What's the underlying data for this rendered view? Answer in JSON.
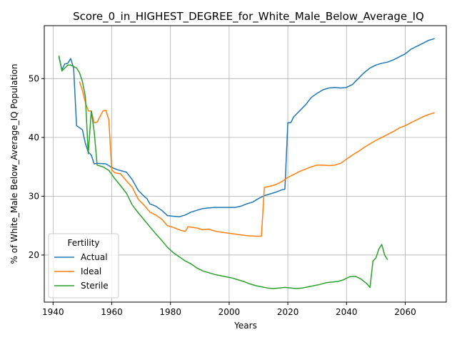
{
  "chart_data": {
    "type": "line",
    "title": "Score_0_in_HIGHEST_DEGREE_for_White_Male_Below_Average_IQ",
    "xlabel": "Years",
    "ylabel": "% of White_Male Below_Average_IQ Population",
    "xlim": [
      1937,
      2074
    ],
    "ylim": [
      12,
      59
    ],
    "xticks": [
      1940,
      1960,
      1980,
      2000,
      2020,
      2040,
      2060
    ],
    "yticks": [
      20,
      30,
      40,
      50
    ],
    "grid": true,
    "legend": {
      "title": "Fertility",
      "position": "lower-left"
    },
    "series": [
      {
        "name": "Actual",
        "color": "#1f77b4",
        "points": [
          [
            1942,
            53.7
          ],
          [
            1943,
            51.5
          ],
          [
            1944,
            52.5
          ],
          [
            1945,
            52.6
          ],
          [
            1946,
            53.4
          ],
          [
            1947,
            51.8
          ],
          [
            1948,
            42.0
          ],
          [
            1950,
            41.3
          ],
          [
            1951,
            39.0
          ],
          [
            1952,
            37.5
          ],
          [
            1953,
            37.0
          ],
          [
            1954,
            35.5
          ],
          [
            1955,
            35.6
          ],
          [
            1958,
            35.5
          ],
          [
            1960,
            34.9
          ],
          [
            1962,
            34.5
          ],
          [
            1965,
            34.1
          ],
          [
            1967,
            32.8
          ],
          [
            1969,
            31.0
          ],
          [
            1971,
            30.0
          ],
          [
            1972,
            29.6
          ],
          [
            1973,
            28.7
          ],
          [
            1975,
            28.3
          ],
          [
            1977,
            27.6
          ],
          [
            1979,
            26.7
          ],
          [
            1981,
            26.6
          ],
          [
            1983,
            26.5
          ],
          [
            1985,
            26.8
          ],
          [
            1987,
            27.3
          ],
          [
            1989,
            27.6
          ],
          [
            1991,
            27.9
          ],
          [
            1993,
            28.0
          ],
          [
            1995,
            28.1
          ],
          [
            1997,
            28.1
          ],
          [
            1999,
            28.1
          ],
          [
            2002,
            28.1
          ],
          [
            2004,
            28.3
          ],
          [
            2006,
            28.7
          ],
          [
            2008,
            29.0
          ],
          [
            2010,
            29.6
          ],
          [
            2012,
            30.1
          ],
          [
            2014,
            30.4
          ],
          [
            2016,
            30.7
          ],
          [
            2018,
            31.1
          ],
          [
            2019,
            31.2
          ],
          [
            2020,
            42.5
          ],
          [
            2021,
            42.5
          ],
          [
            2022,
            43.5
          ],
          [
            2024,
            44.5
          ],
          [
            2026,
            45.5
          ],
          [
            2028,
            46.8
          ],
          [
            2030,
            47.5
          ],
          [
            2032,
            48.1
          ],
          [
            2034,
            48.4
          ],
          [
            2036,
            48.5
          ],
          [
            2038,
            48.4
          ],
          [
            2040,
            48.5
          ],
          [
            2042,
            49.0
          ],
          [
            2044,
            50.0
          ],
          [
            2046,
            51.0
          ],
          [
            2048,
            51.8
          ],
          [
            2050,
            52.3
          ],
          [
            2052,
            52.6
          ],
          [
            2054,
            52.8
          ],
          [
            2056,
            53.2
          ],
          [
            2058,
            53.7
          ],
          [
            2060,
            54.2
          ],
          [
            2062,
            55.0
          ],
          [
            2064,
            55.5
          ],
          [
            2066,
            56.0
          ],
          [
            2068,
            56.5
          ],
          [
            2070,
            56.8
          ]
        ]
      },
      {
        "name": "Ideal",
        "color": "#ff7f0e",
        "points": [
          [
            1949,
            49.5
          ],
          [
            1950,
            48.0
          ],
          [
            1951,
            46.0
          ],
          [
            1952,
            44.5
          ],
          [
            1953,
            44.5
          ],
          [
            1954,
            42.5
          ],
          [
            1955,
            42.6
          ],
          [
            1957,
            44.5
          ],
          [
            1958,
            44.6
          ],
          [
            1959,
            43.0
          ],
          [
            1960,
            34.5
          ],
          [
            1961,
            34.0
          ],
          [
            1963,
            33.8
          ],
          [
            1965,
            32.6
          ],
          [
            1967,
            31.5
          ],
          [
            1969,
            29.5
          ],
          [
            1971,
            28.5
          ],
          [
            1973,
            27.3
          ],
          [
            1975,
            26.8
          ],
          [
            1977,
            26.1
          ],
          [
            1979,
            25.0
          ],
          [
            1981,
            24.7
          ],
          [
            1983,
            24.3
          ],
          [
            1985,
            24.0
          ],
          [
            1986,
            24.8
          ],
          [
            1989,
            24.6
          ],
          [
            1991,
            24.3
          ],
          [
            1993,
            24.4
          ],
          [
            1995,
            24.1
          ],
          [
            1997,
            23.9
          ],
          [
            2000,
            23.7
          ],
          [
            2003,
            23.5
          ],
          [
            2006,
            23.3
          ],
          [
            2009,
            23.2
          ],
          [
            2011,
            23.2
          ],
          [
            2012,
            31.5
          ],
          [
            2014,
            31.7
          ],
          [
            2016,
            32.0
          ],
          [
            2018,
            32.5
          ],
          [
            2020,
            33.2
          ],
          [
            2022,
            33.7
          ],
          [
            2024,
            34.2
          ],
          [
            2026,
            34.6
          ],
          [
            2028,
            35.0
          ],
          [
            2030,
            35.3
          ],
          [
            2032,
            35.3
          ],
          [
            2034,
            35.2
          ],
          [
            2036,
            35.3
          ],
          [
            2038,
            35.6
          ],
          [
            2040,
            36.3
          ],
          [
            2042,
            37.0
          ],
          [
            2044,
            37.6
          ],
          [
            2046,
            38.3
          ],
          [
            2048,
            38.9
          ],
          [
            2050,
            39.5
          ],
          [
            2052,
            40.0
          ],
          [
            2054,
            40.5
          ],
          [
            2056,
            41.0
          ],
          [
            2058,
            41.6
          ],
          [
            2060,
            42.0
          ],
          [
            2062,
            42.5
          ],
          [
            2064,
            43.0
          ],
          [
            2066,
            43.5
          ],
          [
            2068,
            43.9
          ],
          [
            2070,
            44.2
          ]
        ]
      },
      {
        "name": "Sterile",
        "color": "#2ca02c",
        "points": [
          [
            1942,
            53.9
          ],
          [
            1943,
            51.3
          ],
          [
            1945,
            52.3
          ],
          [
            1946,
            52.3
          ],
          [
            1948,
            51.8
          ],
          [
            1949,
            51.0
          ],
          [
            1950,
            49.5
          ],
          [
            1951,
            47.0
          ],
          [
            1952,
            37.2
          ],
          [
            1953,
            44.5
          ],
          [
            1954,
            41.0
          ],
          [
            1955,
            35.3
          ],
          [
            1957,
            35.0
          ],
          [
            1959,
            34.4
          ],
          [
            1961,
            33.0
          ],
          [
            1963,
            31.8
          ],
          [
            1965,
            30.5
          ],
          [
            1967,
            28.5
          ],
          [
            1969,
            27.2
          ],
          [
            1971,
            26.0
          ],
          [
            1973,
            24.8
          ],
          [
            1975,
            23.6
          ],
          [
            1977,
            22.5
          ],
          [
            1979,
            21.3
          ],
          [
            1981,
            20.4
          ],
          [
            1983,
            19.7
          ],
          [
            1985,
            19.0
          ],
          [
            1987,
            18.5
          ],
          [
            1989,
            17.8
          ],
          [
            1991,
            17.3
          ],
          [
            1993,
            17.0
          ],
          [
            1995,
            16.7
          ],
          [
            1997,
            16.5
          ],
          [
            1999,
            16.3
          ],
          [
            2001,
            16.1
          ],
          [
            2003,
            15.8
          ],
          [
            2005,
            15.5
          ],
          [
            2007,
            15.1
          ],
          [
            2009,
            14.8
          ],
          [
            2011,
            14.6
          ],
          [
            2013,
            14.4
          ],
          [
            2015,
            14.3
          ],
          [
            2017,
            14.4
          ],
          [
            2019,
            14.5
          ],
          [
            2021,
            14.4
          ],
          [
            2023,
            14.3
          ],
          [
            2025,
            14.4
          ],
          [
            2027,
            14.6
          ],
          [
            2029,
            14.8
          ],
          [
            2031,
            15.0
          ],
          [
            2033,
            15.3
          ],
          [
            2035,
            15.4
          ],
          [
            2037,
            15.5
          ],
          [
            2039,
            15.8
          ],
          [
            2041,
            16.3
          ],
          [
            2043,
            16.4
          ],
          [
            2045,
            15.9
          ],
          [
            2047,
            15.1
          ],
          [
            2048,
            14.5
          ],
          [
            2049,
            19.0
          ],
          [
            2050,
            19.5
          ],
          [
            2051,
            21.0
          ],
          [
            2052,
            21.8
          ],
          [
            2053,
            20.0
          ],
          [
            2054,
            19.2
          ]
        ]
      }
    ]
  }
}
